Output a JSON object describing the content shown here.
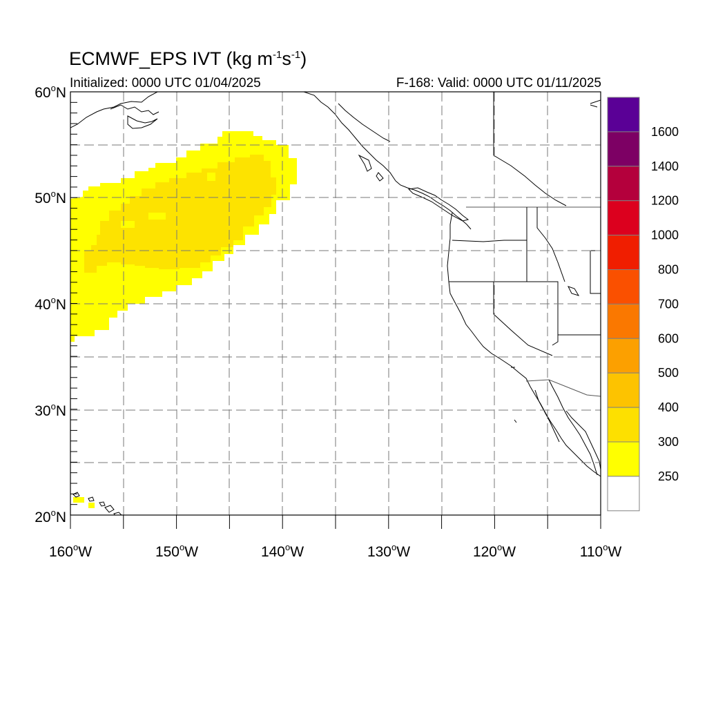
{
  "title": {
    "main": "ECMWF_EPS IVT (kg m",
    "exp1": "-1",
    "mid": "s",
    "exp2": "-1",
    "end": ")"
  },
  "subtitle": {
    "left": "Initialized: 0000 UTC 01/04/2025",
    "right": "F-168: Valid: 0000 UTC 01/11/2025"
  },
  "axes": {
    "lat_labels": [
      "60",
      "50",
      "40",
      "30",
      "20"
    ],
    "lat_suffix": "N",
    "lon_labels": [
      "160",
      "150",
      "140",
      "130",
      "120",
      "110"
    ],
    "lon_suffix": "W",
    "degree": "o"
  },
  "colorbar": {
    "labels": [
      "1600",
      "1400",
      "1200",
      "1000",
      "800",
      "700",
      "600",
      "500",
      "400",
      "300",
      "250"
    ],
    "colors_top_to_bottom": [
      "#5a0096",
      "#7d0064",
      "#b4003c",
      "#dc001e",
      "#f01e00",
      "#fa5000",
      "#fa7800",
      "#fca000",
      "#fdc300",
      "#fde000",
      "#ffff00",
      "#ffffff"
    ]
  },
  "colors": {
    "ivt_250": "#ffff00",
    "ivt_300": "#fde300",
    "grid": "#777777",
    "coast": "#000000"
  }
}
